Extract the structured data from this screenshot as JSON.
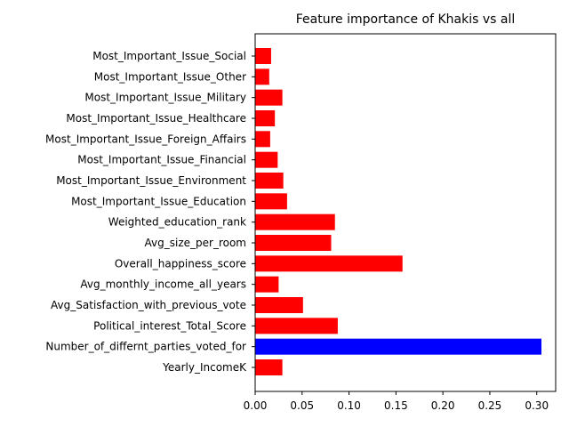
{
  "chart_data": {
    "type": "bar",
    "orientation": "horizontal",
    "title": "Feature importance of Khakis vs all",
    "xlabel": "",
    "ylabel": "",
    "xlim": [
      0,
      0.32
    ],
    "xticks": [
      0.0,
      0.05,
      0.1,
      0.15,
      0.2,
      0.25,
      0.3
    ],
    "xtick_labels": [
      "0.00",
      "0.05",
      "0.10",
      "0.15",
      "0.20",
      "0.25",
      "0.30"
    ],
    "grid": false,
    "categories": [
      "Yearly_IncomeK",
      "Number_of_differnt_parties_voted_for",
      "Political_interest_Total_Score",
      "Avg_Satisfaction_with_previous_vote",
      "Avg_monthly_income_all_years",
      "Overall_happiness_score",
      "Avg_size_per_room",
      "Weighted_education_rank",
      "Most_Important_Issue_Education",
      "Most_Important_Issue_Environment",
      "Most_Important_Issue_Financial",
      "Most_Important_Issue_Foreign_Affairs",
      "Most_Important_Issue_Healthcare",
      "Most_Important_Issue_Military",
      "Most_Important_Issue_Other",
      "Most_Important_Issue_Social"
    ],
    "values": [
      0.029,
      0.305,
      0.088,
      0.051,
      0.025,
      0.157,
      0.081,
      0.085,
      0.034,
      0.03,
      0.024,
      0.016,
      0.021,
      0.029,
      0.015,
      0.017
    ],
    "colors": [
      "#ff0000",
      "#0000ff",
      "#ff0000",
      "#ff0000",
      "#ff0000",
      "#ff0000",
      "#ff0000",
      "#ff0000",
      "#ff0000",
      "#ff0000",
      "#ff0000",
      "#ff0000",
      "#ff0000",
      "#ff0000",
      "#ff0000",
      "#ff0000"
    ]
  }
}
